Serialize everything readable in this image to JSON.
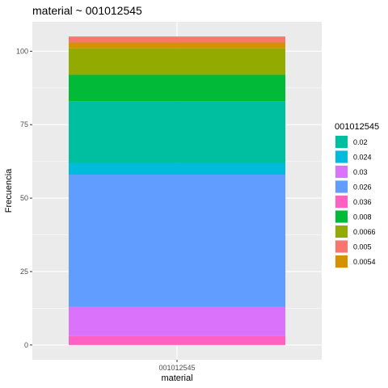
{
  "chart_data": {
    "type": "bar",
    "stacked": true,
    "title": "material ~ 001012545",
    "xlabel": "material",
    "ylabel": "Frecuencia",
    "categories": [
      "001012545"
    ],
    "ylim": [
      -5,
      110
    ],
    "yticks": [
      0,
      25,
      50,
      75,
      100
    ],
    "legend": {
      "title": "001012545",
      "position": "right"
    },
    "grid": true,
    "series": [
      {
        "name": "0.02",
        "color": "#00BFA0",
        "values": [
          21
        ]
      },
      {
        "name": "0.024",
        "color": "#00BBDB",
        "values": [
          4
        ]
      },
      {
        "name": "0.03",
        "color": "#DB72FB",
        "values": [
          10
        ]
      },
      {
        "name": "0.026",
        "color": "#619CFF",
        "values": [
          45
        ]
      },
      {
        "name": "0.036",
        "color": "#FF61C3",
        "values": [
          3
        ]
      },
      {
        "name": "0.008",
        "color": "#00BA38",
        "values": [
          9
        ]
      },
      {
        "name": "0.0066",
        "color": "#93AA00",
        "values": [
          9
        ]
      },
      {
        "name": "0.005",
        "color": "#F8766D",
        "values": [
          2
        ]
      },
      {
        "name": "0.0054",
        "color": "#D39200",
        "values": [
          2
        ]
      }
    ],
    "stack_order_bottom_to_top": [
      "0.036",
      "0.03",
      "0.026",
      "0.024",
      "0.02",
      "0.008",
      "0.0066",
      "0.0054",
      "0.005"
    ]
  }
}
